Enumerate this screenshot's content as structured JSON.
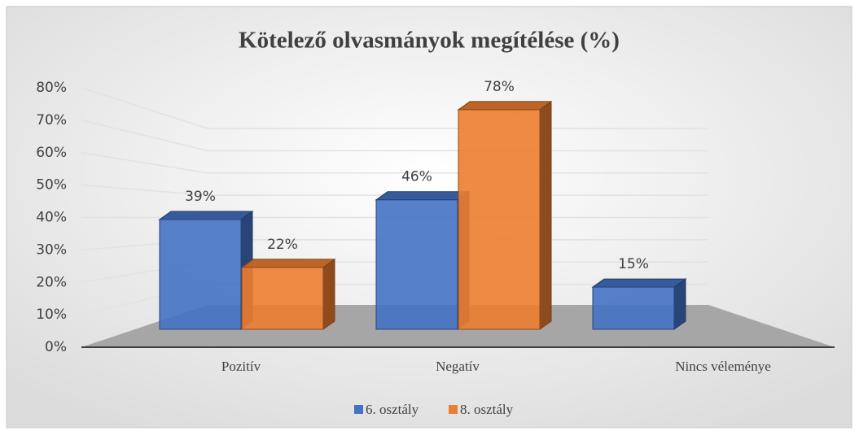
{
  "chart_data": {
    "type": "bar3d",
    "title": "Kötelező olvasmányok megítélése (%)",
    "categories": [
      "Pozitív",
      "Negatív",
      "Nincs véleménye"
    ],
    "series": [
      {
        "name": "6. osztály",
        "color": "#4472c4",
        "values": [
          39,
          46,
          15
        ],
        "value_labels": [
          "39%",
          "46%",
          "15%"
        ]
      },
      {
        "name": "8. osztály",
        "color": "#ed7d31",
        "values": [
          22,
          78,
          null
        ],
        "value_labels": [
          "22%",
          "78%",
          null
        ]
      }
    ],
    "ylim": [
      0,
      80
    ],
    "yticks": [
      {
        "value": 0,
        "label": "0%"
      },
      {
        "value": 10,
        "label": "10%"
      },
      {
        "value": 20,
        "label": "20%"
      },
      {
        "value": 30,
        "label": "30%"
      },
      {
        "value": 40,
        "label": "40%"
      },
      {
        "value": 50,
        "label": "50%"
      },
      {
        "value": 60,
        "label": "60%"
      },
      {
        "value": 70,
        "label": "70%"
      },
      {
        "value": 80,
        "label": "80%"
      }
    ],
    "grid": true,
    "legend": "bottom"
  }
}
